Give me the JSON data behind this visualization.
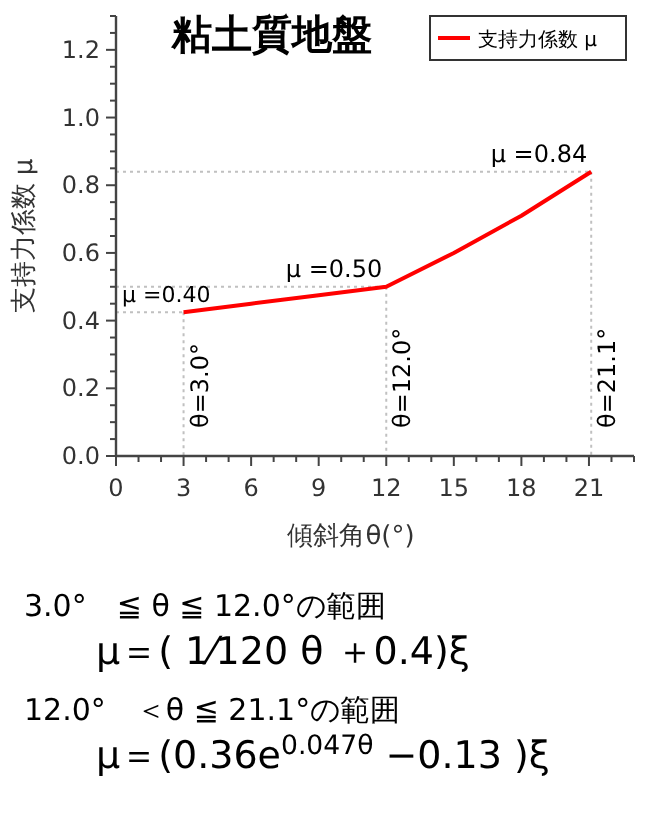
{
  "chart_data": {
    "type": "line",
    "title": "粘土質地盤",
    "xlabel": "傾斜角θ(°)",
    "ylabel": "支持力係数 μ",
    "x": [
      3,
      6,
      9,
      12,
      15,
      18,
      21.1
    ],
    "series": [
      {
        "name": "支持力係数 μ",
        "color": "#ff0000",
        "values": [
          0.425,
          0.45,
          0.475,
          0.5,
          0.6,
          0.71,
          0.84
        ]
      }
    ],
    "xlim": [
      0,
      23
    ],
    "ylim": [
      0,
      1.3
    ],
    "xticks": [
      0,
      {
        "value": 1,
        "label": null
      },
      {
        "value": 2,
        "label": null
      },
      3,
      {
        "value": 4,
        "label": null
      },
      {
        "value": 5,
        "label": null
      },
      6,
      {
        "value": 7,
        "label": null
      },
      {
        "value": 8,
        "label": null
      },
      9,
      {
        "value": 10,
        "label": null
      },
      {
        "value": 11,
        "label": null
      },
      12,
      {
        "value": 13,
        "label": null
      },
      {
        "value": 14,
        "label": null
      },
      15,
      {
        "value": 16,
        "label": null
      },
      {
        "value": 17,
        "label": null
      },
      18,
      {
        "value": 19,
        "label": null
      },
      {
        "value": 20,
        "label": null
      },
      21,
      {
        "value": 22,
        "label": null
      },
      {
        "value": 23,
        "label": null
      }
    ],
    "yticks": [
      {
        "value": 0,
        "label": "0.0"
      },
      {
        "value": 0.05,
        "label": null
      },
      {
        "value": 0.1,
        "label": null
      },
      {
        "value": 0.15,
        "label": null
      },
      {
        "value": 0.2,
        "label": "0.2"
      },
      {
        "value": 0.25,
        "label": null
      },
      {
        "value": 0.3,
        "label": null
      },
      {
        "value": 0.35,
        "label": null
      },
      {
        "value": 0.4,
        "label": "0.4"
      },
      {
        "value": 0.45,
        "label": null
      },
      {
        "value": 0.5,
        "label": null
      },
      {
        "value": 0.55,
        "label": null
      },
      {
        "value": 0.6,
        "label": "0.6"
      },
      {
        "value": 0.65,
        "label": null
      },
      {
        "value": 0.7,
        "label": null
      },
      {
        "value": 0.75,
        "label": null
      },
      {
        "value": 0.8,
        "label": "0.8"
      },
      {
        "value": 0.85,
        "label": null
      },
      {
        "value": 0.9,
        "label": null
      },
      {
        "value": 0.95,
        "label": null
      },
      {
        "value": 1.0,
        "label": "1.0"
      },
      {
        "value": 1.05,
        "label": null
      },
      {
        "value": 1.1,
        "label": null
      },
      {
        "value": 1.15,
        "label": null
      },
      {
        "value": 1.2,
        "label": "1.2"
      },
      {
        "value": 1.25,
        "label": null
      },
      {
        "value": 1.3,
        "label": null
      }
    ],
    "ref_lines": [
      {
        "axis": "x",
        "value": 3,
        "label": "θ=3.0°",
        "color": "#c0c0c0",
        "line_style": "dotted"
      },
      {
        "axis": "x",
        "value": 12,
        "label": "θ=12.0°",
        "color": "#c0c0c0",
        "line_style": "dotted"
      },
      {
        "axis": "x",
        "value": 21.1,
        "label": "θ=21.1°",
        "color": "#c0c0c0",
        "line_style": "dotted"
      },
      {
        "axis": "y",
        "value": 0.425,
        "color": "#c0c0c0",
        "line_style": "dotted"
      },
      {
        "axis": "y",
        "value": 0.5,
        "color": "#c0c0c0",
        "line_style": "dotted"
      },
      {
        "axis": "y",
        "value": 0.84,
        "color": "#c0c0c0",
        "line_style": "dotted"
      }
    ],
    "annotations": [
      {
        "text": "μ =0.40",
        "x": 3,
        "y": 0.425
      },
      {
        "text": "μ =0.50",
        "x": 12,
        "y": 0.5
      },
      {
        "text": "μ =0.84",
        "x": 21.1,
        "y": 0.84
      },
      "3.0°　≦ θ ≦ 12.0°の範囲",
      "μ＝( 1⁄120 θ ＋0.4)ξ",
      "12.0°　＜θ ≦ 21.1°の範囲",
      "μ＝(0.36e$^{0.047θ}$ −0.13 )ξ"
    ],
    "grid": false,
    "legend": "top right",
    "marker": "none",
    "line_style": "solid"
  }
}
